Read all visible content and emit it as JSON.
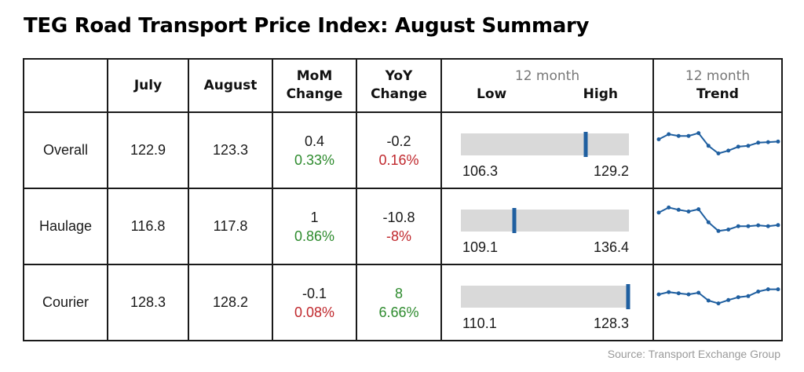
{
  "title": "TEG Road Transport Price Index: August Summary",
  "headers": {
    "july": "July",
    "august": "August",
    "mom_line1": "MoM",
    "mom_line2": "Change",
    "yoy_line1": "YoY",
    "yoy_line2": "Change",
    "range_top": "12 month",
    "range_low": "Low",
    "range_high": "High",
    "trend_top": "12 month",
    "trend_label": "Trend"
  },
  "colors": {
    "positive": "#2e8b2e",
    "negative": "#c0282d",
    "marker": "#1f5fa0",
    "range_bar": "#d9d9d9",
    "trend_line": "#1f5fa0"
  },
  "source": "Source: Transport Exchange Group",
  "chart_data": {
    "type": "table",
    "rows": [
      {
        "name": "Overall",
        "july": "122.9",
        "august": "123.3",
        "mom_change": "0.4",
        "mom_pct": "0.33%",
        "mom_direction": "positive",
        "yoy_change": "-0.2",
        "yoy_pct": "0.16%",
        "yoy_direction": "negative",
        "low": "106.3",
        "high": "129.2",
        "current": 123.3,
        "trend": [
          0.68,
          0.86,
          0.8,
          0.8,
          0.9,
          0.45,
          0.18,
          0.28,
          0.42,
          0.45,
          0.56,
          0.58,
          0.6
        ]
      },
      {
        "name": "Haulage",
        "july": "116.8",
        "august": "117.8",
        "mom_change": "1",
        "mom_pct": "0.86%",
        "mom_direction": "positive",
        "yoy_change": "-10.8",
        "yoy_pct": "-8%",
        "yoy_direction": "negative",
        "low": "109.1",
        "high": "136.4",
        "current": 117.8,
        "trend": [
          0.78,
          0.96,
          0.88,
          0.82,
          0.9,
          0.44,
          0.13,
          0.18,
          0.3,
          0.3,
          0.33,
          0.3,
          0.34
        ]
      },
      {
        "name": "Courier",
        "july": "128.3",
        "august": "128.2",
        "mom_change": "-0.1",
        "mom_pct": "0.08%",
        "mom_direction": "negative",
        "yoy_change": "8",
        "yoy_pct": "6.66%",
        "yoy_direction": "positive",
        "low": "110.1",
        "high": "128.3",
        "current": 128.2,
        "trend": [
          0.58,
          0.66,
          0.62,
          0.58,
          0.64,
          0.36,
          0.26,
          0.38,
          0.48,
          0.52,
          0.68,
          0.76,
          0.76
        ]
      }
    ]
  }
}
